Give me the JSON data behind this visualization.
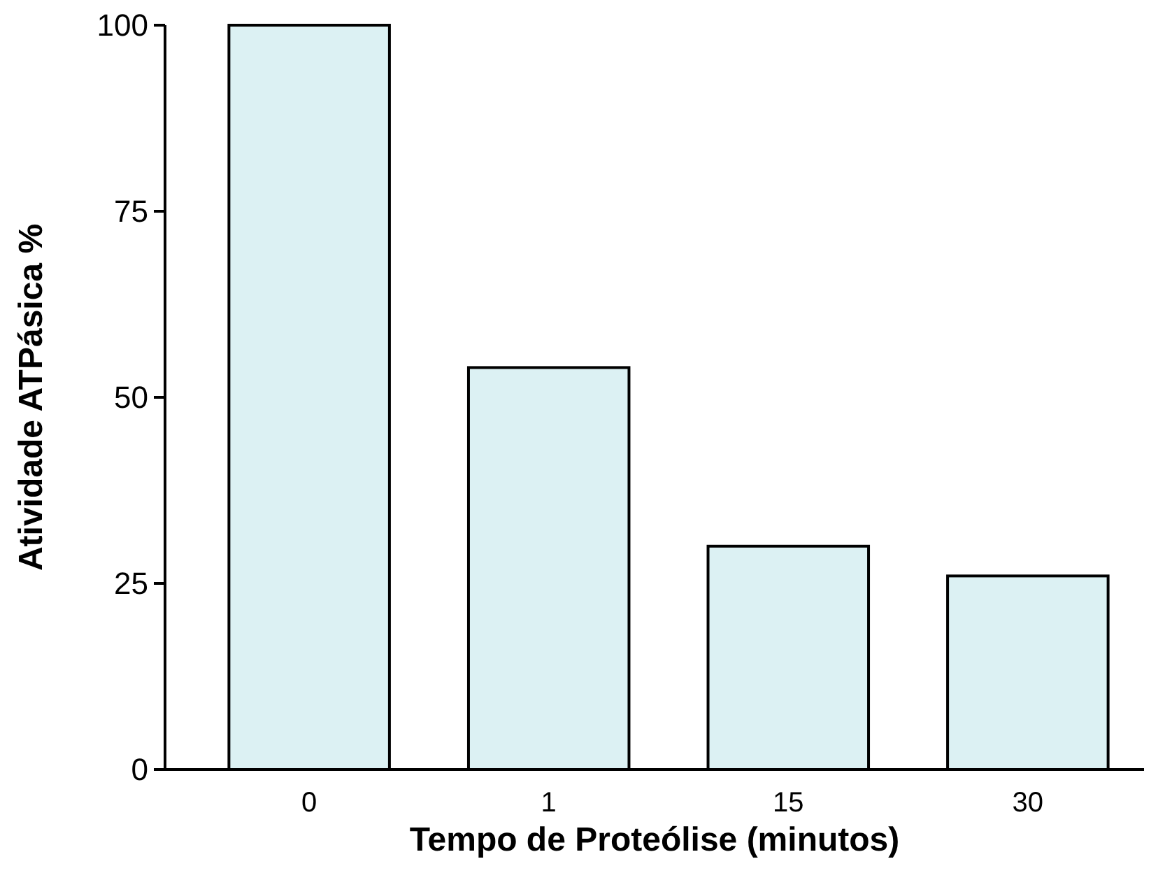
{
  "chart_data": {
    "type": "bar",
    "xlabel": "Tempo de Proteólise (minutos)",
    "ylabel": "Atividade ATPásica %",
    "categories": [
      "0",
      "1",
      "15",
      "30"
    ],
    "values": [
      100,
      54,
      30,
      26
    ],
    "color": "#dcf1f3",
    "ylim": [
      0,
      100
    ],
    "yticks": [
      0,
      25,
      50,
      75,
      100
    ],
    "grid": false
  }
}
